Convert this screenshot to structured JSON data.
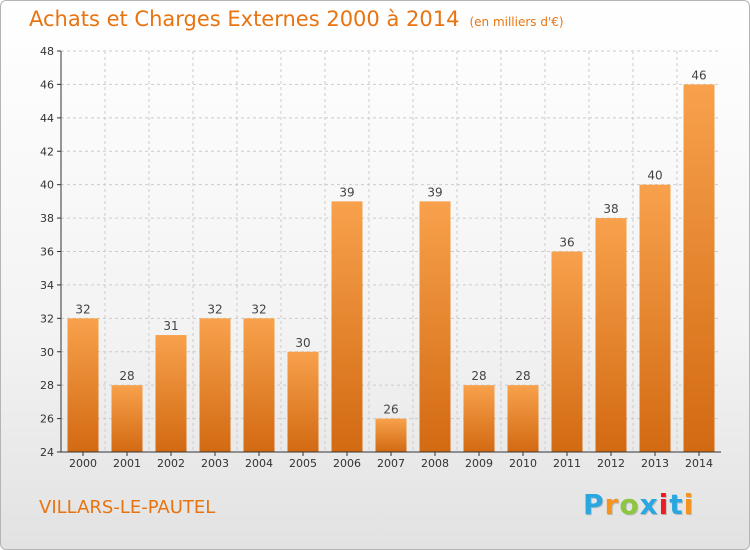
{
  "title": "Achats et Charges Externes 2000 à 2014",
  "subtitle": "(en milliers d'€)",
  "location": "VILLARS-LE-PAUTEL",
  "logo": {
    "text": "Proxiti",
    "colors": [
      "#2aa7e0",
      "#f7941d",
      "#8dc63f",
      "#2aa7e0",
      "#ed1c24",
      "#2aa7e0",
      "#f7941d"
    ]
  },
  "colors": {
    "accent": "#e87411",
    "bar_top": "#f8a14c",
    "bar_bottom": "#d26a12",
    "grid": "#cccccc",
    "axis": "#333333"
  },
  "chart_data": {
    "type": "bar",
    "title": "Achats et Charges Externes 2000 à 2014",
    "subtitle": "(en milliers d'€)",
    "categories": [
      "2000",
      "2001",
      "2002",
      "2003",
      "2004",
      "2005",
      "2006",
      "2007",
      "2008",
      "2009",
      "2010",
      "2011",
      "2012",
      "2013",
      "2014"
    ],
    "values": [
      32,
      28,
      31,
      32,
      32,
      30,
      39,
      26,
      39,
      28,
      28,
      36,
      38,
      40,
      46
    ],
    "ylim": [
      24,
      48
    ],
    "yticks": [
      24,
      26,
      28,
      30,
      32,
      34,
      36,
      38,
      40,
      42,
      44,
      46,
      48
    ],
    "grid": true,
    "data_labels": true
  }
}
